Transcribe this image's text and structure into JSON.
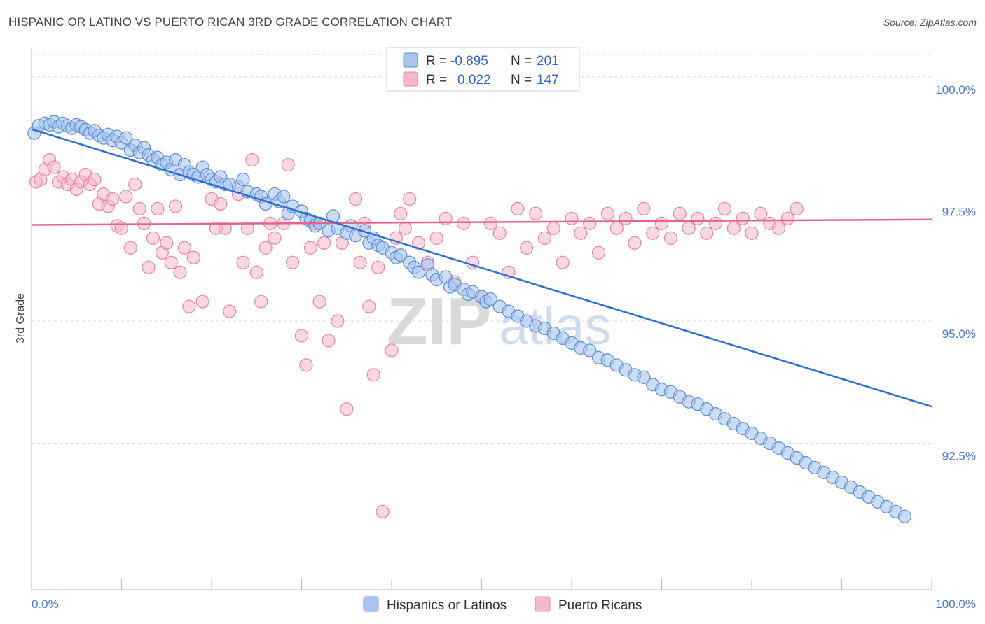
{
  "title": "HISPANIC OR LATINO VS PUERTO RICAN 3RD GRADE CORRELATION CHART",
  "source": "Source: ZipAtlas.com",
  "watermark": {
    "zip": "ZIP",
    "atlas": "atlas"
  },
  "colors": {
    "blue_fill": "#a9c4ec",
    "blue_stroke": "#5b8fd6",
    "blue_line": "#2b6fd0",
    "pink_fill": "#f5b8cb",
    "pink_stroke": "#e883a3",
    "pink_line": "#e8628f",
    "axis_text": "#4a7cc9",
    "grid": "#d8d8d8"
  },
  "legend": {
    "rows": [
      {
        "r_label": "R =",
        "r_value": "-0.895",
        "n_label": "N =",
        "n_value": "201"
      },
      {
        "r_label": "R =",
        "r_value": "0.022",
        "n_label": "N =",
        "n_value": "147"
      }
    ]
  },
  "bottom_legend": [
    "Hispanics or Latinos",
    "Puerto Ricans"
  ],
  "chart_data": {
    "type": "scatter",
    "title": "HISPANIC OR LATINO VS PUERTO RICAN 3RD GRADE CORRELATION CHART",
    "xlabel": "",
    "ylabel": "3rd Grade",
    "xlim": [
      0,
      100
    ],
    "ylim": [
      89.5,
      100.6
    ],
    "x_tick_labels": [
      "0.0%",
      "100.0%"
    ],
    "y_ticks": [
      92.5,
      95.0,
      97.5,
      100.0
    ],
    "y_tick_labels": [
      "92.5%",
      "95.0%",
      "97.5%",
      "100.0%"
    ],
    "grid": "horizontal dashed",
    "legend_position": "top-center",
    "series": [
      {
        "name": "Hispanics or Latinos",
        "r": -0.895,
        "n": 201,
        "trend": {
          "x": [
            0,
            100
          ],
          "y": [
            98.93,
            93.25
          ]
        },
        "points": [
          [
            0.3,
            98.85
          ],
          [
            0.8,
            99.0
          ],
          [
            1.5,
            99.05
          ],
          [
            2.0,
            99.02
          ],
          [
            2.5,
            99.08
          ],
          [
            3.0,
            98.98
          ],
          [
            3.5,
            99.05
          ],
          [
            4.0,
            99.0
          ],
          [
            4.5,
            98.95
          ],
          [
            5.0,
            99.02
          ],
          [
            5.5,
            98.98
          ],
          [
            6.0,
            98.92
          ],
          [
            6.5,
            98.85
          ],
          [
            7.0,
            98.9
          ],
          [
            7.5,
            98.8
          ],
          [
            8.0,
            98.75
          ],
          [
            8.5,
            98.82
          ],
          [
            9.0,
            98.7
          ],
          [
            9.5,
            98.78
          ],
          [
            10.0,
            98.65
          ],
          [
            10.5,
            98.75
          ],
          [
            11.0,
            98.5
          ],
          [
            11.5,
            98.6
          ],
          [
            12.0,
            98.45
          ],
          [
            12.5,
            98.55
          ],
          [
            13.0,
            98.4
          ],
          [
            13.5,
            98.3
          ],
          [
            14.0,
            98.35
          ],
          [
            14.5,
            98.2
          ],
          [
            15.0,
            98.25
          ],
          [
            15.5,
            98.1
          ],
          [
            16.0,
            98.3
          ],
          [
            16.5,
            98.0
          ],
          [
            17.0,
            98.2
          ],
          [
            17.5,
            98.05
          ],
          [
            18.0,
            98.0
          ],
          [
            18.5,
            97.95
          ],
          [
            19.0,
            98.15
          ],
          [
            19.5,
            98.0
          ],
          [
            20.0,
            97.9
          ],
          [
            20.5,
            97.85
          ],
          [
            21.0,
            97.95
          ],
          [
            21.5,
            97.8
          ],
          [
            22.0,
            97.8
          ],
          [
            23.0,
            97.75
          ],
          [
            23.5,
            97.9
          ],
          [
            24.0,
            97.65
          ],
          [
            25.0,
            97.6
          ],
          [
            25.5,
            97.55
          ],
          [
            26.0,
            97.4
          ],
          [
            27.0,
            97.6
          ],
          [
            27.5,
            97.45
          ],
          [
            28.0,
            97.55
          ],
          [
            28.5,
            97.2
          ],
          [
            29.0,
            97.35
          ],
          [
            30.0,
            97.25
          ],
          [
            30.5,
            97.1
          ],
          [
            31.0,
            97.05
          ],
          [
            31.5,
            96.95
          ],
          [
            32.0,
            97.0
          ],
          [
            33.0,
            96.85
          ],
          [
            33.5,
            97.15
          ],
          [
            34.0,
            96.9
          ],
          [
            35.0,
            96.8
          ],
          [
            35.5,
            96.95
          ],
          [
            36.0,
            96.75
          ],
          [
            37.0,
            96.85
          ],
          [
            37.5,
            96.6
          ],
          [
            38.0,
            96.7
          ],
          [
            38.5,
            96.55
          ],
          [
            39.0,
            96.5
          ],
          [
            40.0,
            96.4
          ],
          [
            40.5,
            96.3
          ],
          [
            41.0,
            96.35
          ],
          [
            42.0,
            96.2
          ],
          [
            42.5,
            96.1
          ],
          [
            43.0,
            96.0
          ],
          [
            44.0,
            96.15
          ],
          [
            44.5,
            95.95
          ],
          [
            45.0,
            95.85
          ],
          [
            46.0,
            95.9
          ],
          [
            46.5,
            95.7
          ],
          [
            47.0,
            95.75
          ],
          [
            48.0,
            95.65
          ],
          [
            48.5,
            95.55
          ],
          [
            49.0,
            95.6
          ],
          [
            50.0,
            95.5
          ],
          [
            50.5,
            95.4
          ],
          [
            51.0,
            95.45
          ],
          [
            52.0,
            95.3
          ],
          [
            53.0,
            95.2
          ],
          [
            54.0,
            95.1
          ],
          [
            55.0,
            95.0
          ],
          [
            56.0,
            94.9
          ],
          [
            57.0,
            94.85
          ],
          [
            58.0,
            94.75
          ],
          [
            59.0,
            94.65
          ],
          [
            60.0,
            94.55
          ],
          [
            61.0,
            94.45
          ],
          [
            62.0,
            94.4
          ],
          [
            63.0,
            94.25
          ],
          [
            64.0,
            94.2
          ],
          [
            65.0,
            94.1
          ],
          [
            66.0,
            94.0
          ],
          [
            67.0,
            93.9
          ],
          [
            68.0,
            93.85
          ],
          [
            69.0,
            93.7
          ],
          [
            70.0,
            93.6
          ],
          [
            71.0,
            93.55
          ],
          [
            72.0,
            93.45
          ],
          [
            73.0,
            93.35
          ],
          [
            74.0,
            93.3
          ],
          [
            75.0,
            93.2
          ],
          [
            76.0,
            93.1
          ],
          [
            77.0,
            93.0
          ],
          [
            78.0,
            92.9
          ],
          [
            79.0,
            92.8
          ],
          [
            80.0,
            92.7
          ],
          [
            81.0,
            92.6
          ],
          [
            82.0,
            92.5
          ],
          [
            83.0,
            92.4
          ],
          [
            84.0,
            92.3
          ],
          [
            85.0,
            92.2
          ],
          [
            86.0,
            92.1
          ],
          [
            87.0,
            92.0
          ],
          [
            88.0,
            91.9
          ],
          [
            89.0,
            91.8
          ],
          [
            90.0,
            91.7
          ],
          [
            91.0,
            91.6
          ],
          [
            92.0,
            91.5
          ],
          [
            93.0,
            91.4
          ],
          [
            94.0,
            91.3
          ],
          [
            95.0,
            91.2
          ],
          [
            96.0,
            91.1
          ],
          [
            97.0,
            91.0
          ]
        ]
      },
      {
        "name": "Puerto Ricans",
        "r": 0.022,
        "n": 147,
        "trend": {
          "x": [
            0,
            100
          ],
          "y": [
            96.97,
            97.08
          ]
        },
        "points": [
          [
            0.5,
            97.85
          ],
          [
            1.0,
            97.9
          ],
          [
            1.5,
            98.1
          ],
          [
            2.0,
            98.3
          ],
          [
            2.5,
            98.15
          ],
          [
            3.0,
            97.85
          ],
          [
            3.5,
            97.95
          ],
          [
            4.0,
            97.8
          ],
          [
            4.5,
            97.9
          ],
          [
            5.0,
            97.7
          ],
          [
            5.5,
            97.85
          ],
          [
            6.0,
            98.0
          ],
          [
            6.5,
            97.8
          ],
          [
            7.0,
            97.9
          ],
          [
            7.5,
            97.4
          ],
          [
            8.0,
            97.6
          ],
          [
            8.5,
            97.35
          ],
          [
            9.0,
            97.5
          ],
          [
            9.5,
            96.95
          ],
          [
            10.0,
            96.9
          ],
          [
            10.5,
            97.55
          ],
          [
            11.0,
            96.5
          ],
          [
            11.5,
            97.8
          ],
          [
            12.0,
            97.3
          ],
          [
            12.5,
            97.0
          ],
          [
            13.0,
            96.1
          ],
          [
            13.5,
            96.7
          ],
          [
            14.0,
            97.3
          ],
          [
            14.5,
            96.4
          ],
          [
            15.0,
            96.6
          ],
          [
            15.5,
            96.2
          ],
          [
            16.0,
            97.35
          ],
          [
            16.5,
            96.0
          ],
          [
            17.0,
            96.5
          ],
          [
            17.5,
            95.3
          ],
          [
            18.0,
            96.3
          ],
          [
            19.0,
            95.4
          ],
          [
            20.0,
            97.5
          ],
          [
            20.5,
            96.9
          ],
          [
            21.0,
            97.4
          ],
          [
            21.5,
            96.9
          ],
          [
            22.0,
            95.2
          ],
          [
            23.0,
            97.6
          ],
          [
            23.5,
            96.2
          ],
          [
            24.0,
            96.9
          ],
          [
            24.5,
            98.3
          ],
          [
            25.0,
            96.0
          ],
          [
            25.5,
            95.4
          ],
          [
            26.0,
            96.5
          ],
          [
            26.5,
            97.0
          ],
          [
            27.0,
            96.7
          ],
          [
            28.0,
            97.0
          ],
          [
            28.5,
            98.2
          ],
          [
            29.0,
            96.2
          ],
          [
            30.0,
            94.7
          ],
          [
            30.5,
            94.1
          ],
          [
            31.0,
            96.5
          ],
          [
            31.5,
            97.0
          ],
          [
            32.0,
            95.4
          ],
          [
            32.5,
            96.6
          ],
          [
            33.0,
            94.6
          ],
          [
            34.0,
            95.0
          ],
          [
            34.5,
            96.6
          ],
          [
            35.0,
            93.2
          ],
          [
            36.0,
            97.5
          ],
          [
            36.5,
            96.2
          ],
          [
            37.0,
            97.0
          ],
          [
            37.5,
            95.3
          ],
          [
            38.0,
            93.9
          ],
          [
            38.5,
            96.1
          ],
          [
            39.0,
            91.1
          ],
          [
            40.0,
            94.4
          ],
          [
            40.5,
            96.7
          ],
          [
            41.0,
            97.2
          ],
          [
            41.5,
            96.9
          ],
          [
            42.0,
            97.5
          ],
          [
            43.0,
            96.6
          ],
          [
            44.0,
            96.2
          ],
          [
            45.0,
            96.7
          ],
          [
            46.0,
            97.1
          ],
          [
            47.0,
            95.8
          ],
          [
            48.0,
            97.0
          ],
          [
            49.0,
            96.2
          ],
          [
            50.0,
            95.5
          ],
          [
            51.0,
            97.0
          ],
          [
            52.0,
            96.8
          ],
          [
            53.0,
            96.0
          ],
          [
            54.0,
            97.3
          ],
          [
            55.0,
            96.5
          ],
          [
            56.0,
            97.2
          ],
          [
            57.0,
            96.7
          ],
          [
            58.0,
            96.9
          ],
          [
            59.0,
            96.2
          ],
          [
            60.0,
            97.1
          ],
          [
            61.0,
            96.8
          ],
          [
            62.0,
            97.0
          ],
          [
            63.0,
            96.4
          ],
          [
            64.0,
            97.2
          ],
          [
            65.0,
            96.9
          ],
          [
            66.0,
            97.1
          ],
          [
            67.0,
            96.6
          ],
          [
            68.0,
            97.3
          ],
          [
            69.0,
            96.8
          ],
          [
            70.0,
            97.0
          ],
          [
            71.0,
            96.7
          ],
          [
            72.0,
            97.2
          ],
          [
            73.0,
            96.9
          ],
          [
            74.0,
            97.1
          ],
          [
            75.0,
            96.8
          ],
          [
            76.0,
            97.0
          ],
          [
            77.0,
            97.3
          ],
          [
            78.0,
            96.9
          ],
          [
            79.0,
            97.1
          ],
          [
            80.0,
            96.8
          ],
          [
            81.0,
            97.2
          ],
          [
            82.0,
            97.0
          ],
          [
            83.0,
            96.9
          ],
          [
            84.0,
            97.1
          ],
          [
            85.0,
            97.3
          ]
        ]
      }
    ]
  }
}
